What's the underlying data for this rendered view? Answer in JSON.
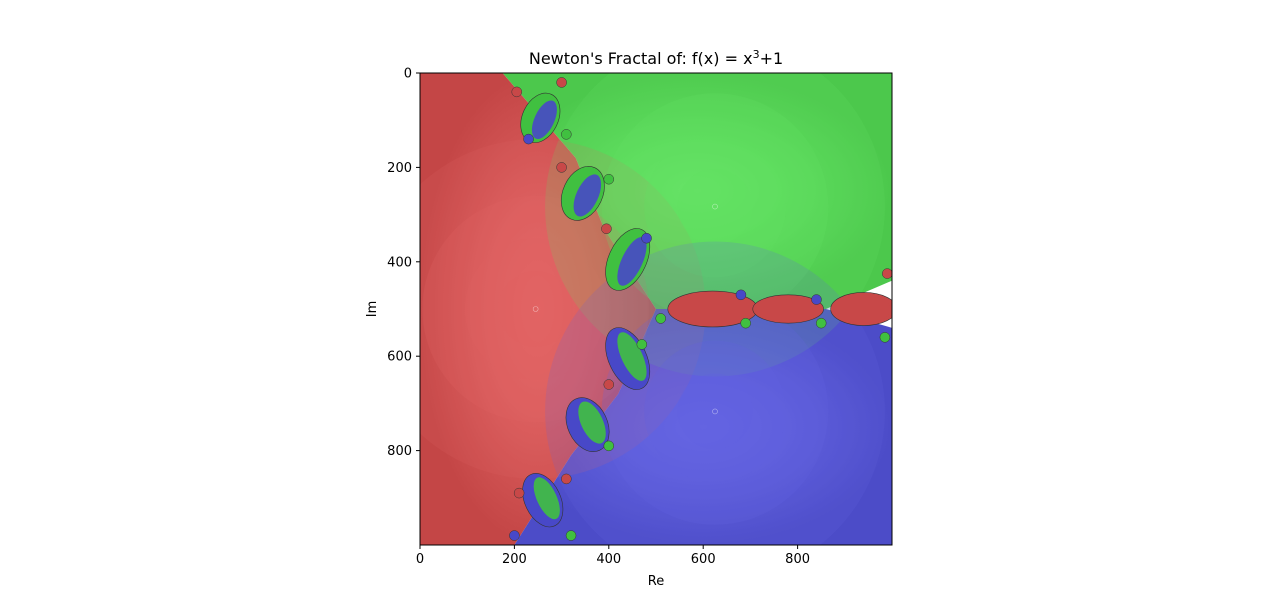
{
  "chart_data": {
    "type": "heatmap",
    "title": "Newton's Fractal of: f(x) = x",
    "title_superscript": "3",
    "title_suffix": "+1",
    "xlabel": "Re",
    "ylabel": "Im",
    "xlim": [
      0,
      1000
    ],
    "ylim": [
      1000,
      0
    ],
    "x_ticks": [
      0,
      200,
      400,
      600,
      800
    ],
    "y_ticks": [
      0,
      200,
      400,
      600,
      800
    ],
    "grid": false,
    "description_of_cells": "pixel index grid 1000x1000; colour encodes which root of x^3+1 Newton's method converges to",
    "roots": [
      {
        "name": "red",
        "color": "#e06262",
        "center": [
          245,
          500
        ]
      },
      {
        "name": "green",
        "color": "#62e062",
        "center": [
          625,
          283
        ]
      },
      {
        "name": "blue",
        "color": "#6262e0",
        "center": [
          625,
          717
        ]
      }
    ]
  },
  "colors": {
    "red": "#c84848",
    "green": "#50d050",
    "blue": "#5050d0",
    "axis": "#000000"
  }
}
